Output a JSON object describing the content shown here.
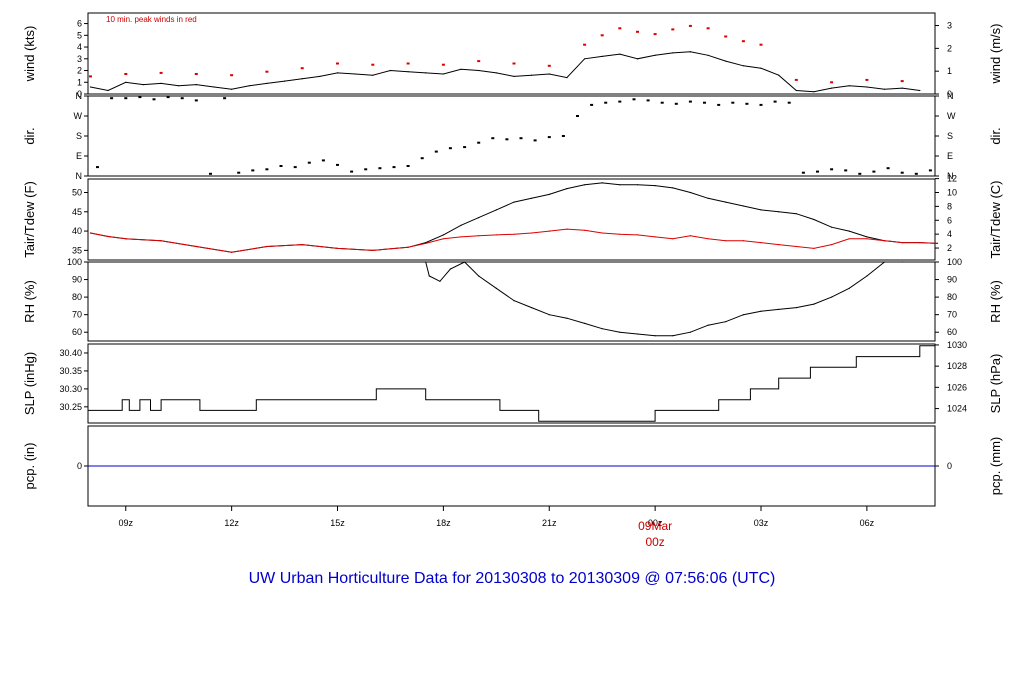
{
  "title": "UW Urban Horticulture Data for 20130308  to  20130309 @ 07:56:06  (UTC)",
  "colors": {
    "primary": "#000000",
    "secondary": "#dd0000",
    "precip": "#0000cc",
    "title": "#0000cc"
  },
  "x_ticks": [
    {
      "label": "09z",
      "hour": 9
    },
    {
      "label": "12z",
      "hour": 12
    },
    {
      "label": "15z",
      "hour": 15
    },
    {
      "label": "18z",
      "hour": 18
    },
    {
      "label": "21z",
      "hour": 21
    },
    {
      "label": "00z",
      "hour": 24
    },
    {
      "label": "03z",
      "hour": 27
    },
    {
      "label": "06z",
      "hour": 30
    }
  ],
  "date_marker": {
    "label": "09Mar",
    "sub": "00z",
    "hour": 24
  },
  "x_range_hours": [
    7.93,
    31.93
  ],
  "chart_data": [
    {
      "id": "wind",
      "type": "line",
      "ylabel_left": "wind (kts)",
      "ylabel_right": "wind (m/s)",
      "annotation": "10 min. peak winds in red",
      "ylim": [
        0,
        6.9
      ],
      "left_ticks": [
        {
          "v": 0,
          "t": "0"
        },
        {
          "v": 1,
          "t": "1"
        },
        {
          "v": 2,
          "t": "2"
        },
        {
          "v": 3,
          "t": "3"
        },
        {
          "v": 4,
          "t": "4"
        },
        {
          "v": 5,
          "t": "5"
        },
        {
          "v": 6,
          "t": "6"
        }
      ],
      "right_ticks": [
        {
          "v": 0,
          "t": "0"
        },
        {
          "v": 1.944,
          "t": "1"
        },
        {
          "v": 3.888,
          "t": "2"
        },
        {
          "v": 5.832,
          "t": "3"
        }
      ],
      "series": [
        {
          "style": "line",
          "color": "#000000",
          "x": [
            8,
            8.5,
            9,
            9.5,
            10,
            10.5,
            11,
            11.5,
            12,
            12.5,
            13,
            13.5,
            14,
            14.5,
            15,
            15.5,
            16,
            16.5,
            17,
            17.5,
            18,
            18.5,
            19,
            19.5,
            20,
            20.5,
            21,
            21.5,
            22,
            22.5,
            23,
            23.5,
            24,
            24.5,
            25,
            25.5,
            26,
            26.5,
            27,
            27.5,
            28,
            28.5,
            29,
            29.5,
            30,
            30.5,
            31,
            31.5
          ],
          "y": [
            0.6,
            0.3,
            1.0,
            0.8,
            0.9,
            0.7,
            0.8,
            0.6,
            0.4,
            0.7,
            0.9,
            1.1,
            1.3,
            1.5,
            1.8,
            1.7,
            1.6,
            2.0,
            1.9,
            1.8,
            1.7,
            2.1,
            2.0,
            1.8,
            1.5,
            1.6,
            1.7,
            1.4,
            3.0,
            3.2,
            3.4,
            3.0,
            3.3,
            3.5,
            3.6,
            3.3,
            2.8,
            2.4,
            2.2,
            1.6,
            0.3,
            0.2,
            0.5,
            0.7,
            0.6,
            0.4,
            0.5,
            0.3
          ]
        },
        {
          "style": "dots",
          "color": "#dd0000",
          "x": [
            8,
            9,
            10,
            11,
            12,
            13,
            14,
            15,
            16,
            17,
            18,
            19,
            20,
            21,
            22,
            22.5,
            23,
            23.5,
            24,
            24.5,
            25,
            25.5,
            26,
            26.5,
            27,
            28,
            29,
            30,
            31
          ],
          "y": [
            1.5,
            1.7,
            1.8,
            1.7,
            1.6,
            1.9,
            2.2,
            2.6,
            2.5,
            2.6,
            2.5,
            2.8,
            2.6,
            2.4,
            4.2,
            5.0,
            5.6,
            5.3,
            5.1,
            5.5,
            5.8,
            5.6,
            4.9,
            4.5,
            4.2,
            1.2,
            1.0,
            1.2,
            1.1
          ]
        }
      ]
    },
    {
      "id": "dir",
      "type": "scatter",
      "ylabel_left": "dir.",
      "ylabel_right": "dir.",
      "ylim": [
        0,
        360
      ],
      "left_ticks": [
        {
          "v": 0,
          "t": "N"
        },
        {
          "v": 90,
          "t": "E"
        },
        {
          "v": 180,
          "t": "S"
        },
        {
          "v": 270,
          "t": "W"
        },
        {
          "v": 360,
          "t": "N"
        }
      ],
      "right_ticks": [
        {
          "v": 0,
          "t": "N"
        },
        {
          "v": 90,
          "t": "E"
        },
        {
          "v": 180,
          "t": "S"
        },
        {
          "v": 270,
          "t": "W"
        },
        {
          "v": 360,
          "t": "N"
        }
      ],
      "series": [
        {
          "style": "dots",
          "color": "#000000",
          "x": [
            8.2,
            8.6,
            9,
            9.4,
            9.8,
            10.2,
            10.6,
            11,
            11.4,
            11.8,
            12.2,
            12.6,
            13,
            13.4,
            13.8,
            14.2,
            14.6,
            15,
            15.4,
            15.8,
            16.2,
            16.6,
            17,
            17.4,
            17.8,
            18.2,
            18.6,
            19,
            19.4,
            19.8,
            20.2,
            20.6,
            21,
            21.4,
            21.8,
            22.2,
            22.6,
            23,
            23.4,
            23.8,
            24.2,
            24.6,
            25,
            25.4,
            25.8,
            26.2,
            26.6,
            27,
            27.4,
            27.8,
            28.2,
            28.6,
            29,
            29.4,
            29.8,
            30.2,
            30.6,
            31,
            31.4,
            31.8
          ],
          "y": [
            40,
            350,
            350,
            355,
            345,
            355,
            350,
            340,
            10,
            350,
            15,
            25,
            30,
            45,
            40,
            60,
            70,
            50,
            20,
            30,
            35,
            40,
            45,
            80,
            110,
            125,
            130,
            150,
            170,
            165,
            170,
            160,
            175,
            180,
            270,
            320,
            330,
            335,
            345,
            340,
            330,
            325,
            335,
            330,
            320,
            330,
            325,
            320,
            335,
            330,
            15,
            20,
            30,
            25,
            10,
            20,
            35,
            15,
            10,
            25
          ]
        }
      ]
    },
    {
      "id": "temp",
      "type": "line",
      "ylabel_left": "Tair/Tdew (F)",
      "ylabel_right": "Tair/Tdew (C)",
      "ylim": [
        32.5,
        53.5
      ],
      "left_ticks": [
        {
          "v": 35,
          "t": "35"
        },
        {
          "v": 40,
          "t": "40"
        },
        {
          "v": 45,
          "t": "45"
        },
        {
          "v": 50,
          "t": "50"
        }
      ],
      "right_ticks": [
        {
          "v": 35.6,
          "t": "2"
        },
        {
          "v": 39.2,
          "t": "4"
        },
        {
          "v": 42.8,
          "t": "6"
        },
        {
          "v": 46.4,
          "t": "8"
        },
        {
          "v": 50,
          "t": "10"
        },
        {
          "v": 53.6,
          "t": "12"
        }
      ],
      "series": [
        {
          "style": "line",
          "color": "#000000",
          "x": [
            8,
            8.5,
            9,
            10,
            11,
            12,
            13,
            14,
            15,
            16,
            17,
            17.5,
            18,
            18.5,
            19,
            19.5,
            20,
            20.5,
            21,
            21.5,
            22,
            22.5,
            23,
            23.5,
            24,
            24.5,
            25,
            25.5,
            26,
            26.5,
            27,
            27.5,
            28,
            28.5,
            29,
            29.5,
            30,
            30.5,
            31,
            31.5,
            32
          ],
          "y": [
            39.5,
            38.6,
            38.0,
            37.5,
            36.0,
            34.5,
            36.0,
            36.5,
            35.5,
            35.0,
            35.8,
            37.0,
            39.0,
            41.5,
            43.5,
            45.5,
            47.5,
            48.5,
            49.5,
            51.0,
            52.0,
            52.5,
            52.0,
            52.0,
            51.8,
            51.2,
            50.0,
            48.5,
            47.5,
            46.5,
            45.5,
            45.0,
            44.5,
            43.0,
            41.0,
            40.0,
            38.5,
            37.5,
            37.0,
            37.0,
            36.8
          ]
        },
        {
          "style": "line",
          "color": "#dd0000",
          "x": [
            8,
            8.5,
            9,
            10,
            11,
            12,
            13,
            14,
            15,
            16,
            17,
            17.5,
            18,
            18.5,
            19,
            19.5,
            20,
            20.5,
            21,
            21.5,
            22,
            22.5,
            23,
            23.5,
            24,
            24.5,
            25,
            25.5,
            26,
            26.5,
            27,
            27.5,
            28,
            28.5,
            29,
            29.5,
            30,
            30.5,
            31,
            31.5,
            32
          ],
          "y": [
            39.5,
            38.6,
            38.0,
            37.5,
            36.0,
            34.5,
            36.0,
            36.5,
            35.5,
            35.0,
            35.8,
            36.8,
            38.0,
            38.5,
            38.8,
            39.0,
            39.2,
            39.5,
            40.0,
            40.5,
            40.2,
            39.5,
            39.2,
            39.0,
            38.5,
            38.0,
            38.8,
            38.0,
            37.5,
            37.5,
            37.0,
            36.5,
            36.0,
            35.5,
            36.5,
            38.0,
            38.0,
            37.5,
            37.0,
            37.0,
            36.8
          ]
        }
      ]
    },
    {
      "id": "rh",
      "type": "line",
      "ylabel_left": "RH (%)",
      "ylabel_right": "RH (%)",
      "ylim": [
        55,
        100
      ],
      "left_ticks": [
        {
          "v": 60,
          "t": "60"
        },
        {
          "v": 70,
          "t": "70"
        },
        {
          "v": 80,
          "t": "80"
        },
        {
          "v": 90,
          "t": "90"
        },
        {
          "v": 100,
          "t": "100"
        }
      ],
      "right_ticks": [
        {
          "v": 60,
          "t": "60"
        },
        {
          "v": 70,
          "t": "70"
        },
        {
          "v": 80,
          "t": "80"
        },
        {
          "v": 90,
          "t": "90"
        },
        {
          "v": 100,
          "t": "100"
        }
      ],
      "series": [
        {
          "style": "line",
          "color": "#000000",
          "x": [
            17.5,
            17.6,
            17.9,
            18.2,
            18.6,
            19,
            19.5,
            20,
            20.5,
            21,
            21.5,
            22,
            22.5,
            23,
            23.5,
            24,
            24.5,
            25,
            25.5,
            26,
            26.5,
            27,
            27.5,
            28,
            28.5,
            29,
            29.5,
            30,
            30.5,
            31
          ],
          "y": [
            100,
            92,
            89,
            96,
            100,
            92,
            85,
            78,
            74,
            70,
            68,
            65,
            62,
            60,
            59,
            58,
            58,
            60,
            64,
            66,
            70,
            72,
            73,
            74,
            76,
            80,
            85,
            92,
            100,
            100
          ]
        }
      ]
    },
    {
      "id": "slp",
      "type": "step",
      "ylabel_left": "SLP (inHg)",
      "ylabel_right": "SLP (hPa)",
      "ylim": [
        30.205,
        30.425
      ],
      "left_ticks": [
        {
          "v": 30.25,
          "t": "30.25"
        },
        {
          "v": 30.3,
          "t": "30.30"
        },
        {
          "v": 30.35,
          "t": "30.35"
        },
        {
          "v": 30.4,
          "t": "30.40"
        }
      ],
      "right_ticks": [
        {
          "v": 30.2452,
          "t": "1024"
        },
        {
          "v": 30.3043,
          "t": "1026"
        },
        {
          "v": 30.3633,
          "t": "1028"
        },
        {
          "v": 30.4224,
          "t": "1030"
        }
      ],
      "series": [
        {
          "style": "step",
          "color": "#000000",
          "x": [
            7.93,
            8.9,
            9.1,
            9.4,
            9.7,
            10.0,
            10.2,
            11.1,
            12.7,
            16.1,
            17.5,
            19.6,
            20.7,
            22.2,
            24.0,
            25.8,
            26.7,
            27.5,
            28.4,
            29.7,
            30.4,
            31.5,
            31.93
          ],
          "y": [
            30.24,
            30.27,
            30.24,
            30.27,
            30.24,
            30.27,
            30.27,
            30.24,
            30.27,
            30.3,
            30.27,
            30.24,
            30.21,
            30.21,
            30.24,
            30.27,
            30.3,
            30.33,
            30.36,
            30.39,
            30.39,
            30.42,
            30.42
          ]
        }
      ]
    },
    {
      "id": "pcp",
      "type": "line",
      "ylabel_left": "pcp. (in)",
      "ylabel_right": "pcp. (mm)",
      "ylim": [
        -1,
        1
      ],
      "left_ticks": [
        {
          "v": 0,
          "t": "0"
        }
      ],
      "right_ticks": [
        {
          "v": 0,
          "t": "0"
        }
      ],
      "series": [
        {
          "style": "line",
          "color": "#0000cc",
          "x": [
            7.93,
            31.93
          ],
          "y": [
            0,
            0
          ]
        }
      ]
    }
  ]
}
